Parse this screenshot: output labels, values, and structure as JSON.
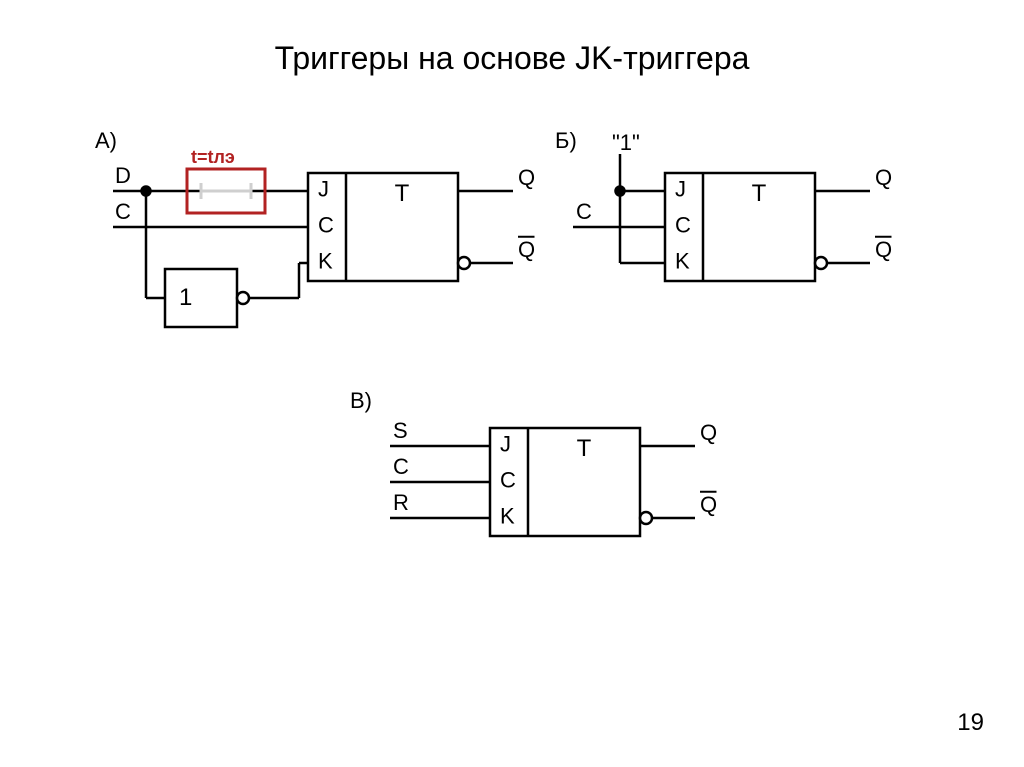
{
  "title": "Триггеры на основе JK-триггера",
  "page_number": "19",
  "colors": {
    "stroke": "#000000",
    "bg": "#ffffff",
    "accent": "#b22222",
    "accent_light": "#cfcfcf"
  },
  "stroke_width": 2.5,
  "font": {
    "label": 22,
    "block": 24,
    "title": 32,
    "accent": 18
  },
  "diagrams": {
    "A": {
      "tag": "А)",
      "inputs_left": [
        "D",
        "C"
      ],
      "jk_labels": [
        "J",
        "C",
        "K"
      ],
      "block_label": "T",
      "outputs": [
        "Q",
        "Q̄"
      ],
      "inverter_label": "1",
      "delay_label": "t=tлэ"
    },
    "B": {
      "tag": "Б)",
      "top_const": "\"1\"",
      "left_label": "C",
      "jk_labels": [
        "J",
        "C",
        "K"
      ],
      "block_label": "T",
      "outputs": [
        "Q",
        "Q̄"
      ]
    },
    "V": {
      "tag": "В)",
      "inputs_left": [
        "S",
        "C",
        "R"
      ],
      "jk_labels": [
        "J",
        "C",
        "K"
      ],
      "block_label": "T",
      "outputs": [
        "Q",
        "Q̄"
      ]
    }
  }
}
